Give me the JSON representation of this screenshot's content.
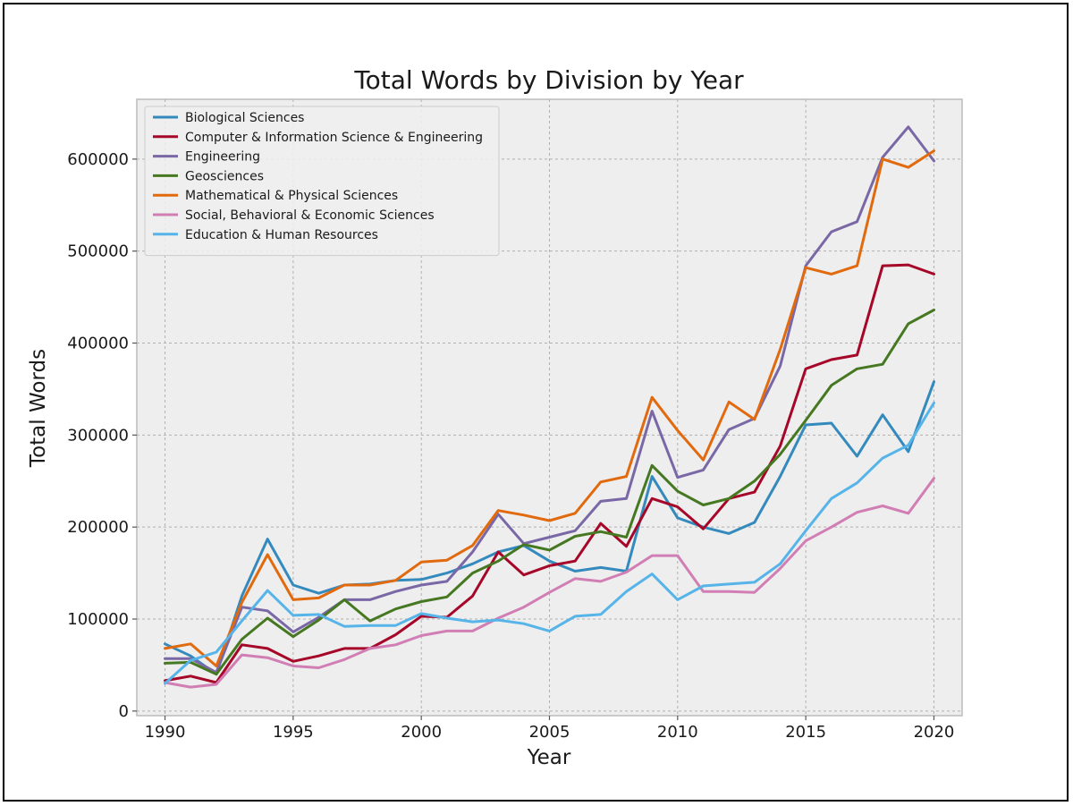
{
  "chart_data": {
    "type": "line",
    "title": "Total Words by Division by Year",
    "xlabel": "Year",
    "ylabel": "Total Words",
    "xlim": [
      1988.9,
      2021.1
    ],
    "ylim": [
      -5000,
      665000
    ],
    "x_ticks": [
      1990,
      1995,
      2000,
      2005,
      2010,
      2015,
      2020
    ],
    "y_ticks": [
      0,
      100000,
      200000,
      300000,
      400000,
      500000,
      600000
    ],
    "grid": true,
    "legend_position": "upper-left",
    "background": "#eeeeee",
    "x": [
      1990,
      1991,
      1992,
      1993,
      1994,
      1995,
      1996,
      1997,
      1998,
      1999,
      2000,
      2001,
      2002,
      2003,
      2004,
      2005,
      2006,
      2007,
      2008,
      2009,
      2010,
      2011,
      2012,
      2013,
      2014,
      2015,
      2016,
      2017,
      2018,
      2019,
      2020
    ],
    "series": [
      {
        "name": "Biological Sciences",
        "color": "#348ABD",
        "values": [
          73000,
          60000,
          40000,
          125000,
          187000,
          137000,
          128000,
          137000,
          138000,
          142000,
          143000,
          150000,
          160000,
          173000,
          180000,
          163000,
          152000,
          156000,
          152000,
          255000,
          210000,
          200000,
          193000,
          205000,
          255000,
          311000,
          313000,
          277000,
          322000,
          282000,
          358000
        ]
      },
      {
        "name": "Computer & Information Science & Engineering",
        "color": "#A60628",
        "values": [
          33000,
          38000,
          31000,
          72000,
          68000,
          54000,
          60000,
          68000,
          68000,
          83000,
          103000,
          102000,
          125000,
          173000,
          148000,
          158000,
          163000,
          204000,
          179000,
          231000,
          222000,
          198000,
          231000,
          238000,
          288000,
          372000,
          382000,
          387000,
          484000,
          485000,
          475000
        ]
      },
      {
        "name": "Engineering",
        "color": "#7A68A6",
        "values": [
          57000,
          57000,
          42000,
          113000,
          109000,
          86000,
          102000,
          121000,
          121000,
          130000,
          137000,
          141000,
          173000,
          214000,
          182000,
          189000,
          196000,
          228000,
          231000,
          326000,
          254000,
          262000,
          306000,
          318000,
          375000,
          484000,
          521000,
          532000,
          602000,
          635000,
          598000
        ]
      },
      {
        "name": "Geosciences",
        "color": "#467821",
        "values": [
          52000,
          53000,
          40000,
          78000,
          101000,
          81000,
          99000,
          121000,
          98000,
          111000,
          119000,
          124000,
          150000,
          163000,
          181000,
          175000,
          190000,
          195000,
          189000,
          267000,
          239000,
          224000,
          231000,
          250000,
          279000,
          316000,
          354000,
          372000,
          377000,
          421000,
          436000
        ]
      },
      {
        "name": "Mathematical & Physical Sciences",
        "color": "#E16A0F",
        "values": [
          68000,
          73000,
          49000,
          118000,
          170000,
          121000,
          123000,
          137000,
          137000,
          142000,
          162000,
          164000,
          180000,
          218000,
          213000,
          207000,
          215000,
          249000,
          255000,
          341000,
          305000,
          273000,
          336000,
          317000,
          393000,
          482000,
          475000,
          484000,
          600000,
          591000,
          609000
        ]
      },
      {
        "name": "Social, Behavioral & Economic Sciences",
        "color": "#D17EB4",
        "values": [
          31000,
          26000,
          29000,
          61000,
          58000,
          49000,
          47000,
          56000,
          68000,
          72000,
          82000,
          87000,
          87000,
          101000,
          113000,
          129000,
          144000,
          141000,
          151000,
          169000,
          169000,
          130000,
          130000,
          129000,
          155000,
          185000,
          200000,
          216000,
          223000,
          215000,
          253000
        ]
      },
      {
        "name": "Education & Human Resources",
        "color": "#56B4E9",
        "values": [
          30000,
          55000,
          64000,
          98000,
          131000,
          104000,
          105000,
          92000,
          93000,
          93000,
          106000,
          101000,
          97000,
          99000,
          95000,
          87000,
          103000,
          105000,
          130000,
          149000,
          121000,
          136000,
          138000,
          140000,
          160000,
          196000,
          231000,
          248000,
          275000,
          289000,
          335000
        ]
      }
    ]
  }
}
